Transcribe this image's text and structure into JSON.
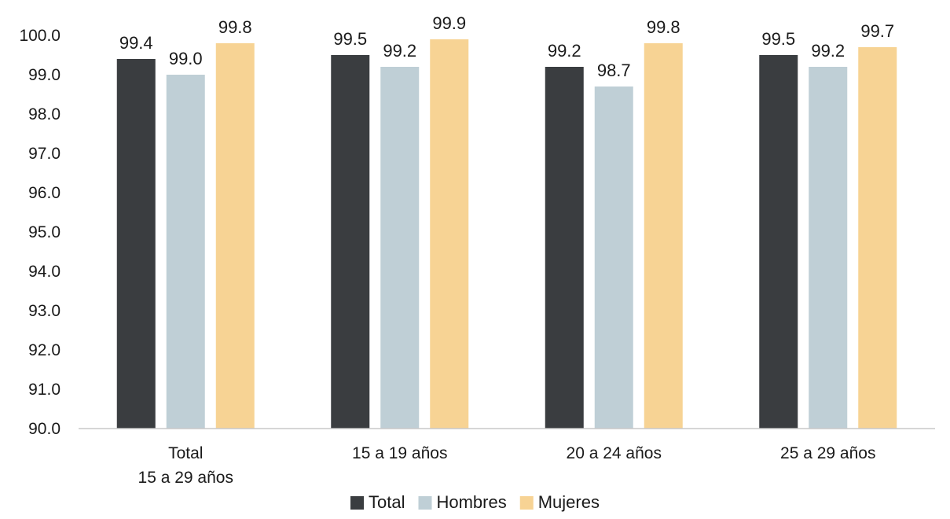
{
  "chart_data": {
    "type": "bar",
    "categories": [
      [
        "Total",
        "15 a 29  años"
      ],
      [
        "15 a 19 años"
      ],
      [
        "20 a 24 años"
      ],
      [
        "25 a 29 años"
      ]
    ],
    "series": [
      {
        "name": "Total",
        "color": "#3a3d40",
        "values": [
          99.4,
          99.5,
          99.2,
          99.5
        ]
      },
      {
        "name": "Hombres",
        "color": "#bfcfd6",
        "values": [
          99.0,
          99.2,
          98.7,
          99.2
        ]
      },
      {
        "name": "Mujeres",
        "color": "#f7d394",
        "values": [
          99.8,
          99.9,
          99.8,
          99.7
        ]
      }
    ],
    "ylim": [
      90.0,
      100.0
    ],
    "yticks": [
      "90.0",
      "91.0",
      "92.0",
      "93.0",
      "94.0",
      "95.0",
      "96.0",
      "97.0",
      "98.0",
      "99.0",
      "100.0"
    ],
    "legend_position": "bottom",
    "grid": false
  }
}
